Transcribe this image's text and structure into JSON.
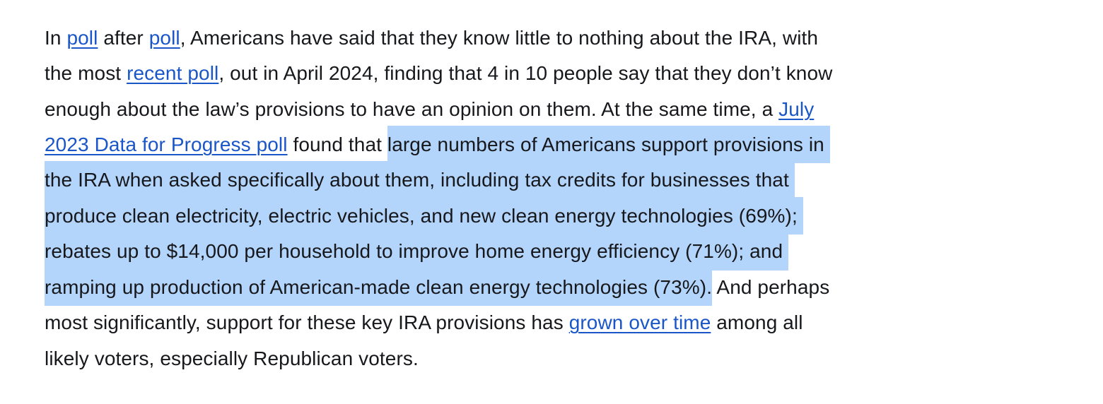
{
  "theme": {
    "background_color": "#ffffff",
    "text_color": "#17181c",
    "link_color": "#1a56c8",
    "selection_highlight_color": "#b3d4fb"
  },
  "paragraph": {
    "full_text": "In poll after poll, Americans have said that they know little to nothing about the IRA, with the most recent poll, out in April 2024, finding that 4 in 10 people say that they don’t know enough about the law’s provisions to have an opinion on them. At the same time, a July 2023 Data for Progress poll found that large numbers of Americans support provisions in the IRA when asked specifically about them, including tax credits for businesses that produce clean electricity, electric vehicles, and new clean energy technologies (69%); rebates up to $14,000 per household to improve home energy efficiency (71%); and ramping up production of American-made clean energy technologies (73%). And perhaps most significantly, support for these key IRA provisions has grown over time among all likely voters, especially Republican voters.",
    "selected_text": "large numbers of Americans support provisions in the IRA when asked specifically about them, including tax credits for businesses that produce clean electricity, electric vehicles, and new clean energy technologies (69%); rebates up to $14,000 per household to improve home energy efficiency (71%); and ramping up production of American-made clean energy technologies (73%).",
    "links": [
      {
        "id": "poll-link-1",
        "label": "poll"
      },
      {
        "id": "poll-link-2",
        "label": "poll"
      },
      {
        "id": "recent-poll-link",
        "label": "recent poll"
      },
      {
        "id": "july-2023-data-for-progress-poll-link",
        "label": "July 2023 Data for Progress poll"
      },
      {
        "id": "grown-over-time-link",
        "label": "grown over time"
      }
    ],
    "lines": [
      {
        "segments": [
          {
            "text": "In ",
            "style": "normal"
          },
          {
            "text": "poll",
            "style": "link",
            "id": "poll-link-1"
          },
          {
            "text": " after ",
            "style": "normal"
          },
          {
            "text": "poll",
            "style": "link",
            "id": "poll-link-2"
          },
          {
            "text": ", Americans have said that they know little to nothing about the IRA, with",
            "style": "normal"
          }
        ]
      },
      {
        "segments": [
          {
            "text": "the most ",
            "style": "normal"
          },
          {
            "text": "recent poll",
            "style": "link",
            "id": "recent-poll-link"
          },
          {
            "text": ", out in April 2024, finding that 4 in 10 people say that they don’t know",
            "style": "normal"
          }
        ]
      },
      {
        "segments": [
          {
            "text": "enough about the law’s provisions to have an opinion on them. At the same time, a ",
            "style": "normal"
          },
          {
            "text": "July",
            "style": "link",
            "id": "july-2023-data-for-progress-poll-link"
          }
        ]
      },
      {
        "segments": [
          {
            "text": "2023 Data for Progress poll",
            "style": "link",
            "id": "july-2023-data-for-progress-poll-link"
          },
          {
            "text": " found that ",
            "style": "normal"
          },
          {
            "text": "large numbers of Americans support provisions in ",
            "style": "selected"
          }
        ]
      },
      {
        "segments": [
          {
            "text": "the IRA when asked specifically about them, including tax credits for businesses that ",
            "style": "selected"
          }
        ]
      },
      {
        "segments": [
          {
            "text": "produce clean electricity, electric vehicles, and new clean energy technologies (69%); ",
            "style": "selected"
          }
        ]
      },
      {
        "segments": [
          {
            "text": "rebates up to $14,000 per household to improve home energy efficiency (71%); and ",
            "style": "selected"
          }
        ]
      },
      {
        "segments": [
          {
            "text": "ramping up production of American-made clean energy technologies (73%).",
            "style": "selected"
          },
          {
            "text": " And perhaps",
            "style": "normal"
          }
        ]
      },
      {
        "segments": [
          {
            "text": "most significantly, support for these key IRA provisions has ",
            "style": "normal"
          },
          {
            "text": "grown over time",
            "style": "link",
            "id": "grown-over-time-link"
          },
          {
            "text": " among all",
            "style": "normal"
          }
        ]
      },
      {
        "segments": [
          {
            "text": "likely voters, especially Republican voters.",
            "style": "normal"
          }
        ]
      }
    ]
  }
}
